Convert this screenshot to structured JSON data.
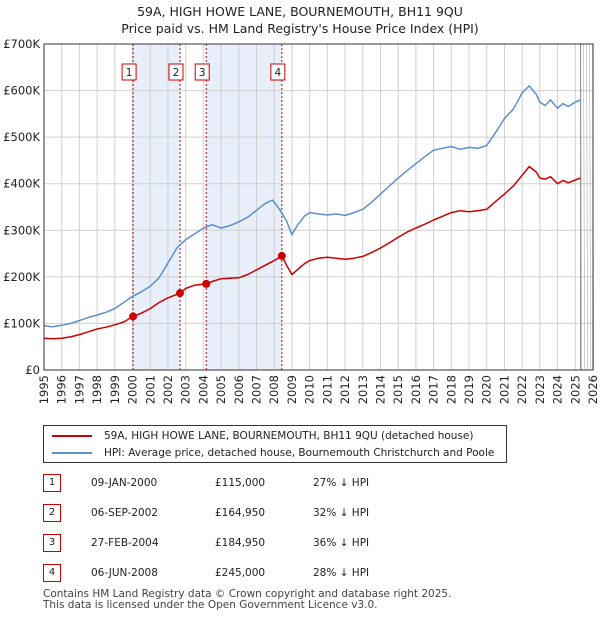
{
  "title_line1": "59A, HIGH HOWE LANE, BOURNEMOUTH, BH11 9QU",
  "title_line2": "Price paid vs. HM Land Registry's House Price Index (HPI)",
  "legend": {
    "property": "59A, HIGH HOWE LANE, BOURNEMOUTH, BH11 9QU (detached house)",
    "hpi": "HPI: Average price, detached house, Bournemouth Christchurch and Poole"
  },
  "colors": {
    "property": "#cc0000",
    "hpi": "#5b8fcc",
    "shade": "#e8eefa",
    "grid": "#d0d0d0"
  },
  "sales": [
    {
      "num": "1",
      "date": "09-JAN-2000",
      "price": "£115,000",
      "hpi": "27% ↓ HPI"
    },
    {
      "num": "2",
      "date": "06-SEP-2002",
      "price": "£164,950",
      "hpi": "32% ↓ HPI"
    },
    {
      "num": "3",
      "date": "27-FEB-2004",
      "price": "£184,950",
      "hpi": "36% ↓ HPI"
    },
    {
      "num": "4",
      "date": "06-JUN-2008",
      "price": "£245,000",
      "hpi": "28% ↓ HPI"
    }
  ],
  "footer_line1": "Contains HM Land Registry data © Crown copyright and database right 2025.",
  "footer_line2": "This data is licensed under the Open Government Licence v3.0.",
  "chart_data": {
    "type": "line",
    "title": "Price paid vs. HM Land Registry's House Price Index (HPI)",
    "xlim": [
      1995,
      2026
    ],
    "ylim": [
      0,
      700000
    ],
    "x_ticks": [
      "1995",
      "1996",
      "1997",
      "1998",
      "1999",
      "2000",
      "2001",
      "2002",
      "2003",
      "2004",
      "2005",
      "2006",
      "2007",
      "2008",
      "2009",
      "2010",
      "2011",
      "2012",
      "2013",
      "2014",
      "2015",
      "2016",
      "2017",
      "2018",
      "2019",
      "2020",
      "2021",
      "2022",
      "2023",
      "2024",
      "2025",
      "2026"
    ],
    "y_ticks": [
      {
        "value": 0,
        "label": "£0"
      },
      {
        "value": 100000,
        "label": "£100K"
      },
      {
        "value": 200000,
        "label": "£200K"
      },
      {
        "value": 300000,
        "label": "£300K"
      },
      {
        "value": 400000,
        "label": "£400K"
      },
      {
        "value": 500000,
        "label": "£500K"
      },
      {
        "value": 600000,
        "label": "£600K"
      },
      {
        "value": 700000,
        "label": "£700K"
      }
    ],
    "shaded_ranges": [
      [
        2000.03,
        2002.68
      ],
      [
        2004.16,
        2008.43
      ]
    ],
    "forecast_from": 2025.3,
    "sale_points": [
      {
        "label": "1",
        "x": 2000.03,
        "y": 115000
      },
      {
        "label": "2",
        "x": 2002.68,
        "y": 164950
      },
      {
        "label": "3",
        "x": 2004.16,
        "y": 184950
      },
      {
        "label": "4",
        "x": 2008.43,
        "y": 245000
      }
    ],
    "series": [
      {
        "name": "HPI: Average price, detached house, Bournemouth Christchurch and Poole",
        "color": "#5b8fcc",
        "x": [
          1995,
          1995.5,
          1996,
          1996.5,
          1997,
          1997.5,
          1998,
          1998.5,
          1999,
          1999.5,
          2000,
          2000.5,
          2001,
          2001.5,
          2002,
          2002.5,
          2003,
          2003.5,
          2004,
          2004.5,
          2005,
          2005.5,
          2006,
          2006.5,
          2007,
          2007.5,
          2007.9,
          2008.3,
          2008.7,
          2009,
          2009.3,
          2009.7,
          2010,
          2010.5,
          2011,
          2011.5,
          2012,
          2012.5,
          2013,
          2013.5,
          2014,
          2014.5,
          2015,
          2015.5,
          2016,
          2016.5,
          2017,
          2017.5,
          2018,
          2018.5,
          2019,
          2019.5,
          2020,
          2020.5,
          2021,
          2021.5,
          2022,
          2022.4,
          2022.8,
          2023,
          2023.3,
          2023.6,
          2024,
          2024.3,
          2024.6,
          2025,
          2025.3
        ],
        "y": [
          95000,
          93000,
          96000,
          100000,
          106000,
          113000,
          118000,
          124000,
          132000,
          145000,
          158000,
          168000,
          180000,
          198000,
          230000,
          262000,
          280000,
          292000,
          305000,
          312000,
          305000,
          310000,
          318000,
          328000,
          343000,
          358000,
          365000,
          345000,
          320000,
          290000,
          310000,
          330000,
          338000,
          335000,
          333000,
          335000,
          332000,
          338000,
          345000,
          360000,
          378000,
          395000,
          412000,
          428000,
          443000,
          458000,
          472000,
          476000,
          480000,
          474000,
          478000,
          476000,
          482000,
          510000,
          540000,
          560000,
          595000,
          610000,
          592000,
          575000,
          568000,
          580000,
          562000,
          572000,
          566000,
          575000,
          580000
        ]
      },
      {
        "name": "59A, HIGH HOWE LANE, BOURNEMOUTH, BH11 9QU (detached house)",
        "color": "#cc0000",
        "x": [
          1995,
          1995.5,
          1996,
          1996.5,
          1997,
          1997.5,
          1998,
          1998.5,
          1999,
          1999.5,
          2000.03,
          2000.5,
          2001,
          2001.5,
          2002,
          2002.68,
          2003,
          2003.5,
          2004.16,
          2004.5,
          2005,
          2005.5,
          2006,
          2006.5,
          2007,
          2007.5,
          2008,
          2008.43,
          2008.7,
          2009,
          2009.3,
          2009.7,
          2010,
          2010.5,
          2011,
          2011.5,
          2012,
          2012.5,
          2013,
          2013.5,
          2014,
          2014.5,
          2015,
          2015.5,
          2016,
          2016.5,
          2017,
          2017.5,
          2018,
          2018.5,
          2019,
          2019.5,
          2020,
          2020.5,
          2021,
          2021.5,
          2022,
          2022.4,
          2022.8,
          2023,
          2023.3,
          2023.6,
          2024,
          2024.3,
          2024.6,
          2025,
          2025.3
        ],
        "y": [
          68000,
          67000,
          68000,
          71000,
          76000,
          82000,
          88000,
          92000,
          97000,
          103000,
          115000,
          122000,
          132000,
          145000,
          155000,
          164950,
          175000,
          182000,
          184950,
          190000,
          196000,
          197000,
          198000,
          205000,
          215000,
          225000,
          235000,
          245000,
          225000,
          205000,
          215000,
          228000,
          235000,
          240000,
          242000,
          240000,
          238000,
          240000,
          244000,
          252000,
          262000,
          273000,
          285000,
          296000,
          305000,
          313000,
          322000,
          330000,
          338000,
          342000,
          340000,
          342000,
          345000,
          362000,
          378000,
          395000,
          418000,
          437000,
          425000,
          412000,
          410000,
          415000,
          400000,
          407000,
          402000,
          408000,
          412000
        ]
      }
    ]
  }
}
